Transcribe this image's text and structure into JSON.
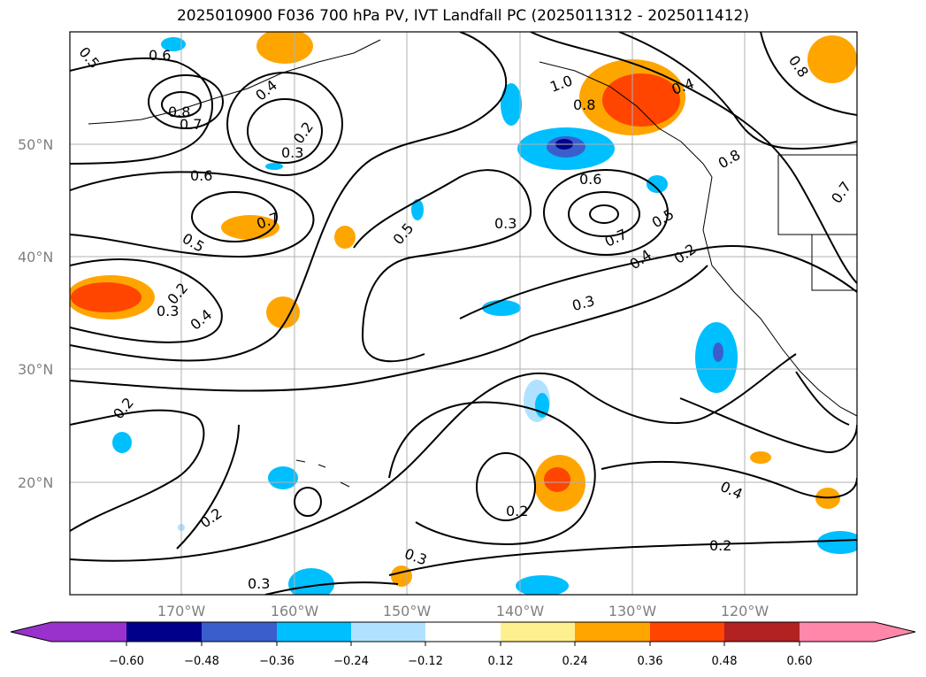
{
  "title": "2025010900 F036 700 hPa PV, IVT Landfall PC (2025011312 - 2025011412)",
  "map": {
    "lat_labels": [
      "50°N",
      "40°N",
      "30°N",
      "20°N"
    ],
    "lon_labels": [
      "170°W",
      "160°W",
      "150°W",
      "140°W",
      "130°W",
      "120°W"
    ],
    "contour_labels": [
      "0.5",
      "0.6",
      "0.8",
      "0.7",
      "0.4",
      "0.2",
      "0.3",
      "0.6",
      "0.7",
      "0.5",
      "0.2",
      "0.3",
      "0.4",
      "0.5",
      "1.0",
      "0.8",
      "0.4",
      "0.6",
      "0.7",
      "0.3",
      "0.4",
      "0.5",
      "0.2",
      "0.8",
      "0.3",
      "0.2",
      "0.2",
      "0.2",
      "0.3",
      "0.4",
      "0.2",
      "0.8",
      "0.7",
      "0.3"
    ]
  },
  "colorbar": {
    "ticks": [
      "−0.60",
      "−0.48",
      "−0.36",
      "−0.24",
      "−0.12",
      "0.12",
      "0.24",
      "0.36",
      "0.48",
      "0.60"
    ],
    "colors": [
      "#9932cc",
      "#00008b",
      "#3a5fcd",
      "#00bfff",
      "#b0e2ff",
      "#ffffff",
      "#fff08f",
      "#ffa500",
      "#ff4500",
      "#b22222",
      "#ff88aa"
    ]
  }
}
